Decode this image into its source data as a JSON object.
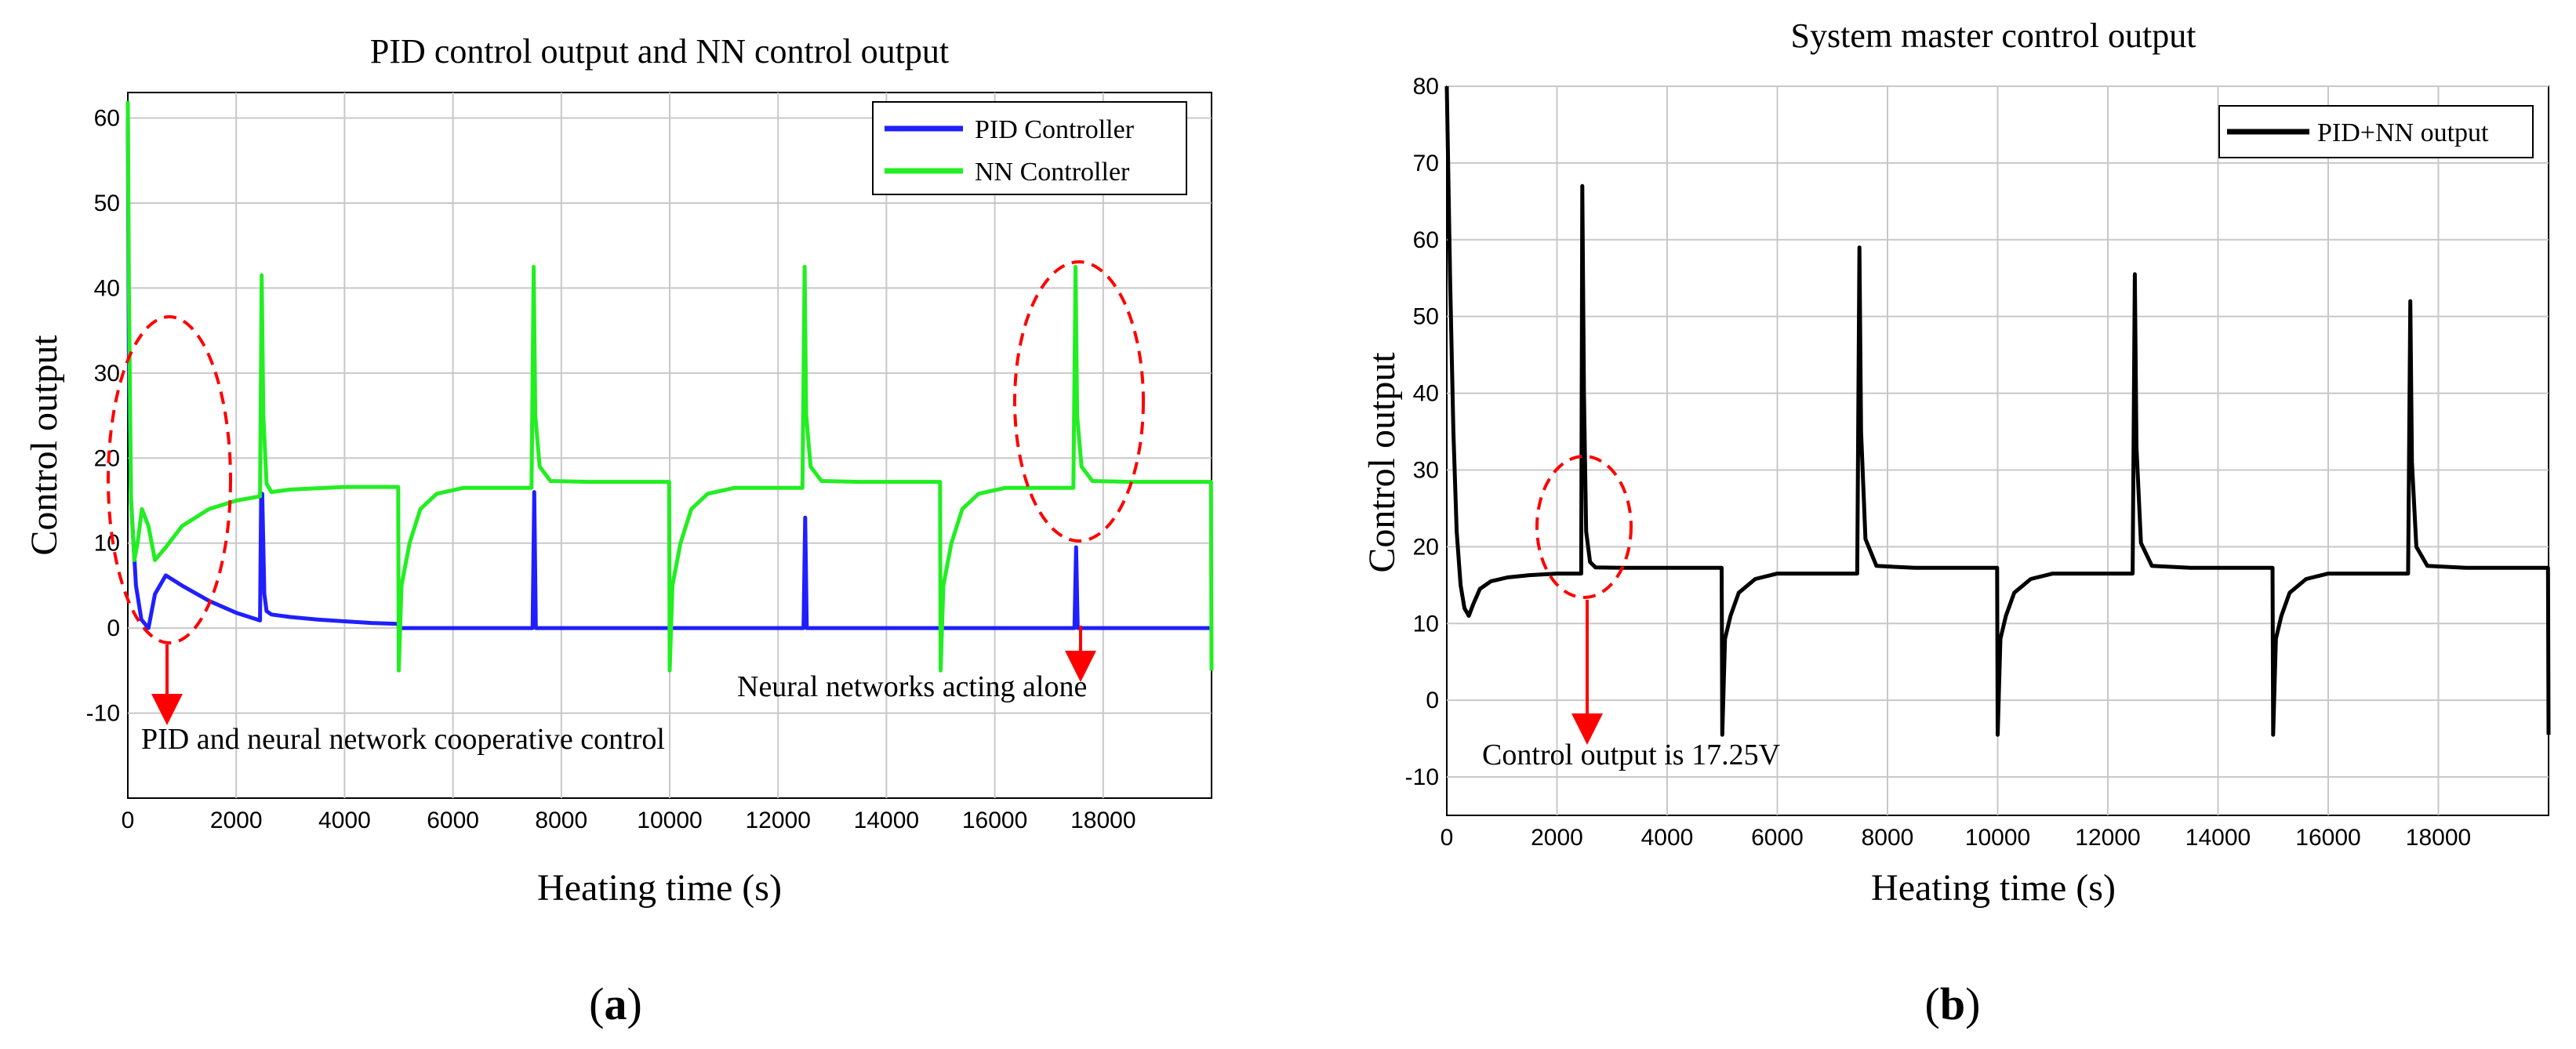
{
  "chart_data": [
    {
      "type": "line",
      "panel_label": "a",
      "title": "PID control output and NN control output",
      "xlabel": "Heating time (s)",
      "ylabel": "Control output",
      "xlim": [
        0,
        20000
      ],
      "ylim": [
        -20,
        63
      ],
      "xticks": [
        0,
        2000,
        4000,
        6000,
        8000,
        10000,
        12000,
        14000,
        16000,
        18000
      ],
      "yticks": [
        -10,
        0,
        10,
        20,
        30,
        40,
        50,
        60
      ],
      "grid": true,
      "legend": "top-right",
      "series": [
        {
          "name": "PID Controller",
          "color": "#1f1fff",
          "x": [
            0,
            20,
            60,
            150,
            250,
            380,
            500,
            700,
            1000,
            1500,
            2000,
            2440,
            2460,
            2480,
            2520,
            2560,
            2650,
            3000,
            3500,
            4000,
            4500,
            4990,
            5000,
            7470,
            7500,
            7530,
            12470,
            12500,
            12530,
            17470,
            17500,
            17530,
            20000
          ],
          "y": [
            60,
            30,
            15,
            5,
            1,
            0,
            4,
            6.2,
            5,
            3.2,
            1.8,
            0.9,
            15.5,
            15.8,
            4,
            2,
            1.6,
            1.3,
            1.0,
            0.8,
            0.6,
            0.5,
            0,
            0,
            16,
            0,
            0,
            13,
            0,
            0,
            9.5,
            0,
            0
          ]
        },
        {
          "name": "NN Controller",
          "color": "#22ee22",
          "x": [
            0,
            20,
            60,
            120,
            180,
            260,
            380,
            500,
            700,
            1000,
            1500,
            2000,
            2440,
            2470,
            2500,
            2560,
            2650,
            3000,
            4000,
            4990,
            5000,
            5050,
            5200,
            5400,
            5700,
            6200,
            7450,
            7490,
            7520,
            7600,
            7800,
            8500,
            9990,
            10000,
            10050,
            10200,
            10400,
            10700,
            11200,
            12450,
            12490,
            12520,
            12600,
            12800,
            13500,
            14990,
            15000,
            15050,
            15200,
            15400,
            15700,
            16200,
            17450,
            17490,
            17520,
            17600,
            17800,
            18500,
            19990,
            20000
          ],
          "y": [
            62,
            40,
            15,
            8,
            10,
            14,
            12,
            8,
            9.5,
            12,
            14,
            15,
            15.5,
            41.5,
            25,
            17,
            16,
            16.3,
            16.6,
            16.6,
            -5,
            5,
            10,
            14,
            15.8,
            16.5,
            16.5,
            42.5,
            25,
            19,
            17.3,
            17.2,
            17.2,
            -5,
            5,
            10,
            14,
            15.8,
            16.5,
            16.5,
            42.5,
            25,
            19,
            17.3,
            17.2,
            17.2,
            -5,
            5,
            10,
            14,
            15.8,
            16.5,
            16.5,
            42.5,
            25,
            19,
            17.3,
            17.2,
            17.2,
            -5
          ]
        }
      ],
      "annotations": [
        {
          "text": "PID and neural network cooperative control",
          "target_x": 750,
          "target_y": 12
        },
        {
          "text": "Neural networks acting alone",
          "target_x": 17500,
          "target_y": 26
        }
      ]
    },
    {
      "type": "line",
      "panel_label": "b",
      "title": "System master control output",
      "xlabel": "Heating time (s)",
      "ylabel": "Control output",
      "xlim": [
        0,
        20000
      ],
      "ylim": [
        -15,
        80
      ],
      "xticks": [
        0,
        2000,
        4000,
        6000,
        8000,
        10000,
        12000,
        14000,
        16000,
        18000
      ],
      "yticks": [
        -10,
        0,
        10,
        20,
        30,
        40,
        50,
        60,
        70,
        80
      ],
      "grid": true,
      "legend": "top-right",
      "series": [
        {
          "name": "PID+NN output",
          "color": "#000000",
          "x": [
            0,
            60,
            120,
            180,
            250,
            320,
            400,
            480,
            600,
            800,
            1100,
            1500,
            2000,
            2440,
            2460,
            2490,
            2530,
            2600,
            2700,
            3200,
            4990,
            5000,
            5050,
            5150,
            5300,
            5600,
            6000,
            7450,
            7490,
            7520,
            7600,
            7800,
            8500,
            9990,
            10000,
            10050,
            10150,
            10300,
            10600,
            11000,
            12450,
            12490,
            12520,
            12600,
            12800,
            13500,
            14990,
            15000,
            15050,
            15150,
            15300,
            15600,
            16000,
            17450,
            17490,
            17520,
            17600,
            17800,
            18500,
            19990,
            20000
          ],
          "y": [
            80,
            55,
            35,
            22,
            15,
            12,
            11,
            12.5,
            14.5,
            15.5,
            16,
            16.3,
            16.5,
            16.5,
            67,
            40,
            22,
            18,
            17.3,
            17.25,
            17.25,
            -4.5,
            8,
            11,
            14,
            15.8,
            16.5,
            16.5,
            59,
            35,
            21,
            17.5,
            17.25,
            17.25,
            -4.5,
            8,
            11,
            14,
            15.8,
            16.5,
            16.5,
            55.5,
            33,
            20.5,
            17.5,
            17.25,
            17.25,
            -4.5,
            8,
            11,
            14,
            15.8,
            16.5,
            16.5,
            52,
            31,
            20,
            17.5,
            17.25,
            17.25,
            -4.5
          ]
        }
      ],
      "annotations": [
        {
          "text": "Control output is 17.25V",
          "target_x": 2600,
          "target_y": 24
        }
      ]
    }
  ]
}
